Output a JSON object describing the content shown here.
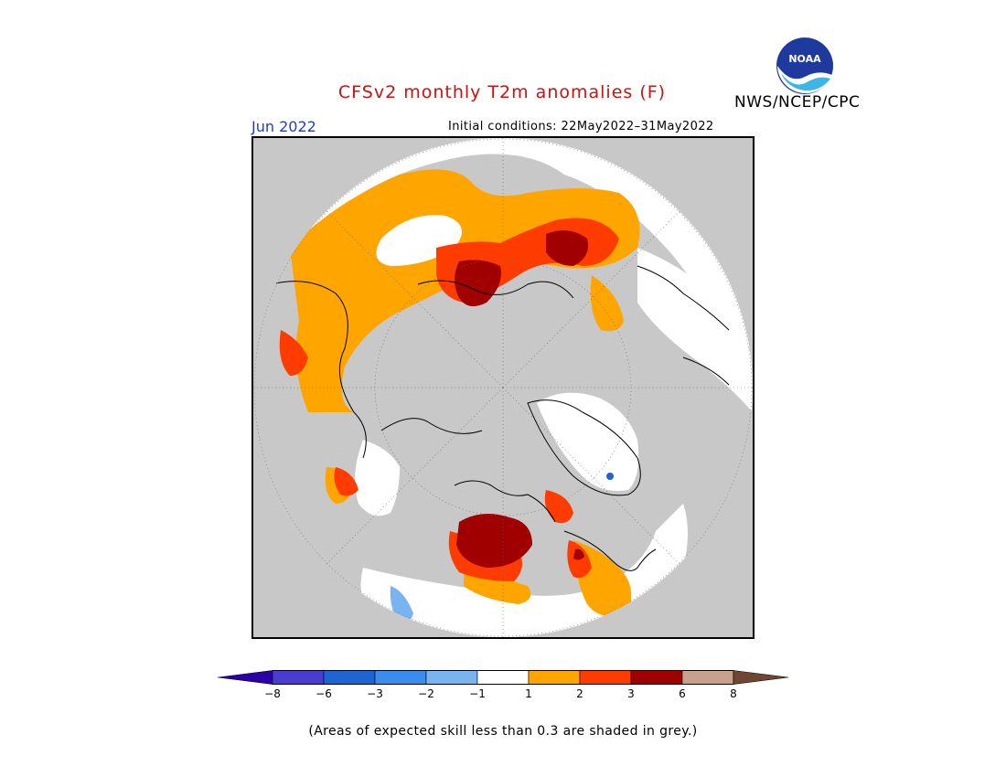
{
  "title": "CFSv2 monthly T2m anomalies (F)",
  "agency": "NWS/NCEP/CPC",
  "logo_text": "NOAA",
  "month_label": "Jun 2022",
  "initial_conditions": "Initial conditions: 22May2022–31May2022",
  "footnote": "(Areas of expected skill less than 0.3 are shaded in grey.)",
  "legend": {
    "bins": [
      {
        "color": "#2b00a8"
      },
      {
        "color": "#4a3cd0"
      },
      {
        "color": "#1e64d2"
      },
      {
        "color": "#3c8cf0"
      },
      {
        "color": "#78b4f0"
      },
      {
        "color": "#ffffff"
      },
      {
        "color": "#ffa500"
      },
      {
        "color": "#ff3c00"
      },
      {
        "color": "#a00000"
      },
      {
        "color": "#c8a08c"
      },
      {
        "color": "#6e4632"
      }
    ],
    "tick_labels": [
      "−8",
      "−6",
      "−3",
      "−2",
      "−1",
      "1",
      "2",
      "3",
      "6",
      "8"
    ]
  },
  "colors": {
    "skill_grey": "#c8c8c8",
    "orange": "#ffa500",
    "red": "#ff3c00",
    "darkred": "#a00000",
    "lightblue": "#78b4f0",
    "title_red": "#cc1111",
    "month_blue": "#1a3bd6"
  }
}
